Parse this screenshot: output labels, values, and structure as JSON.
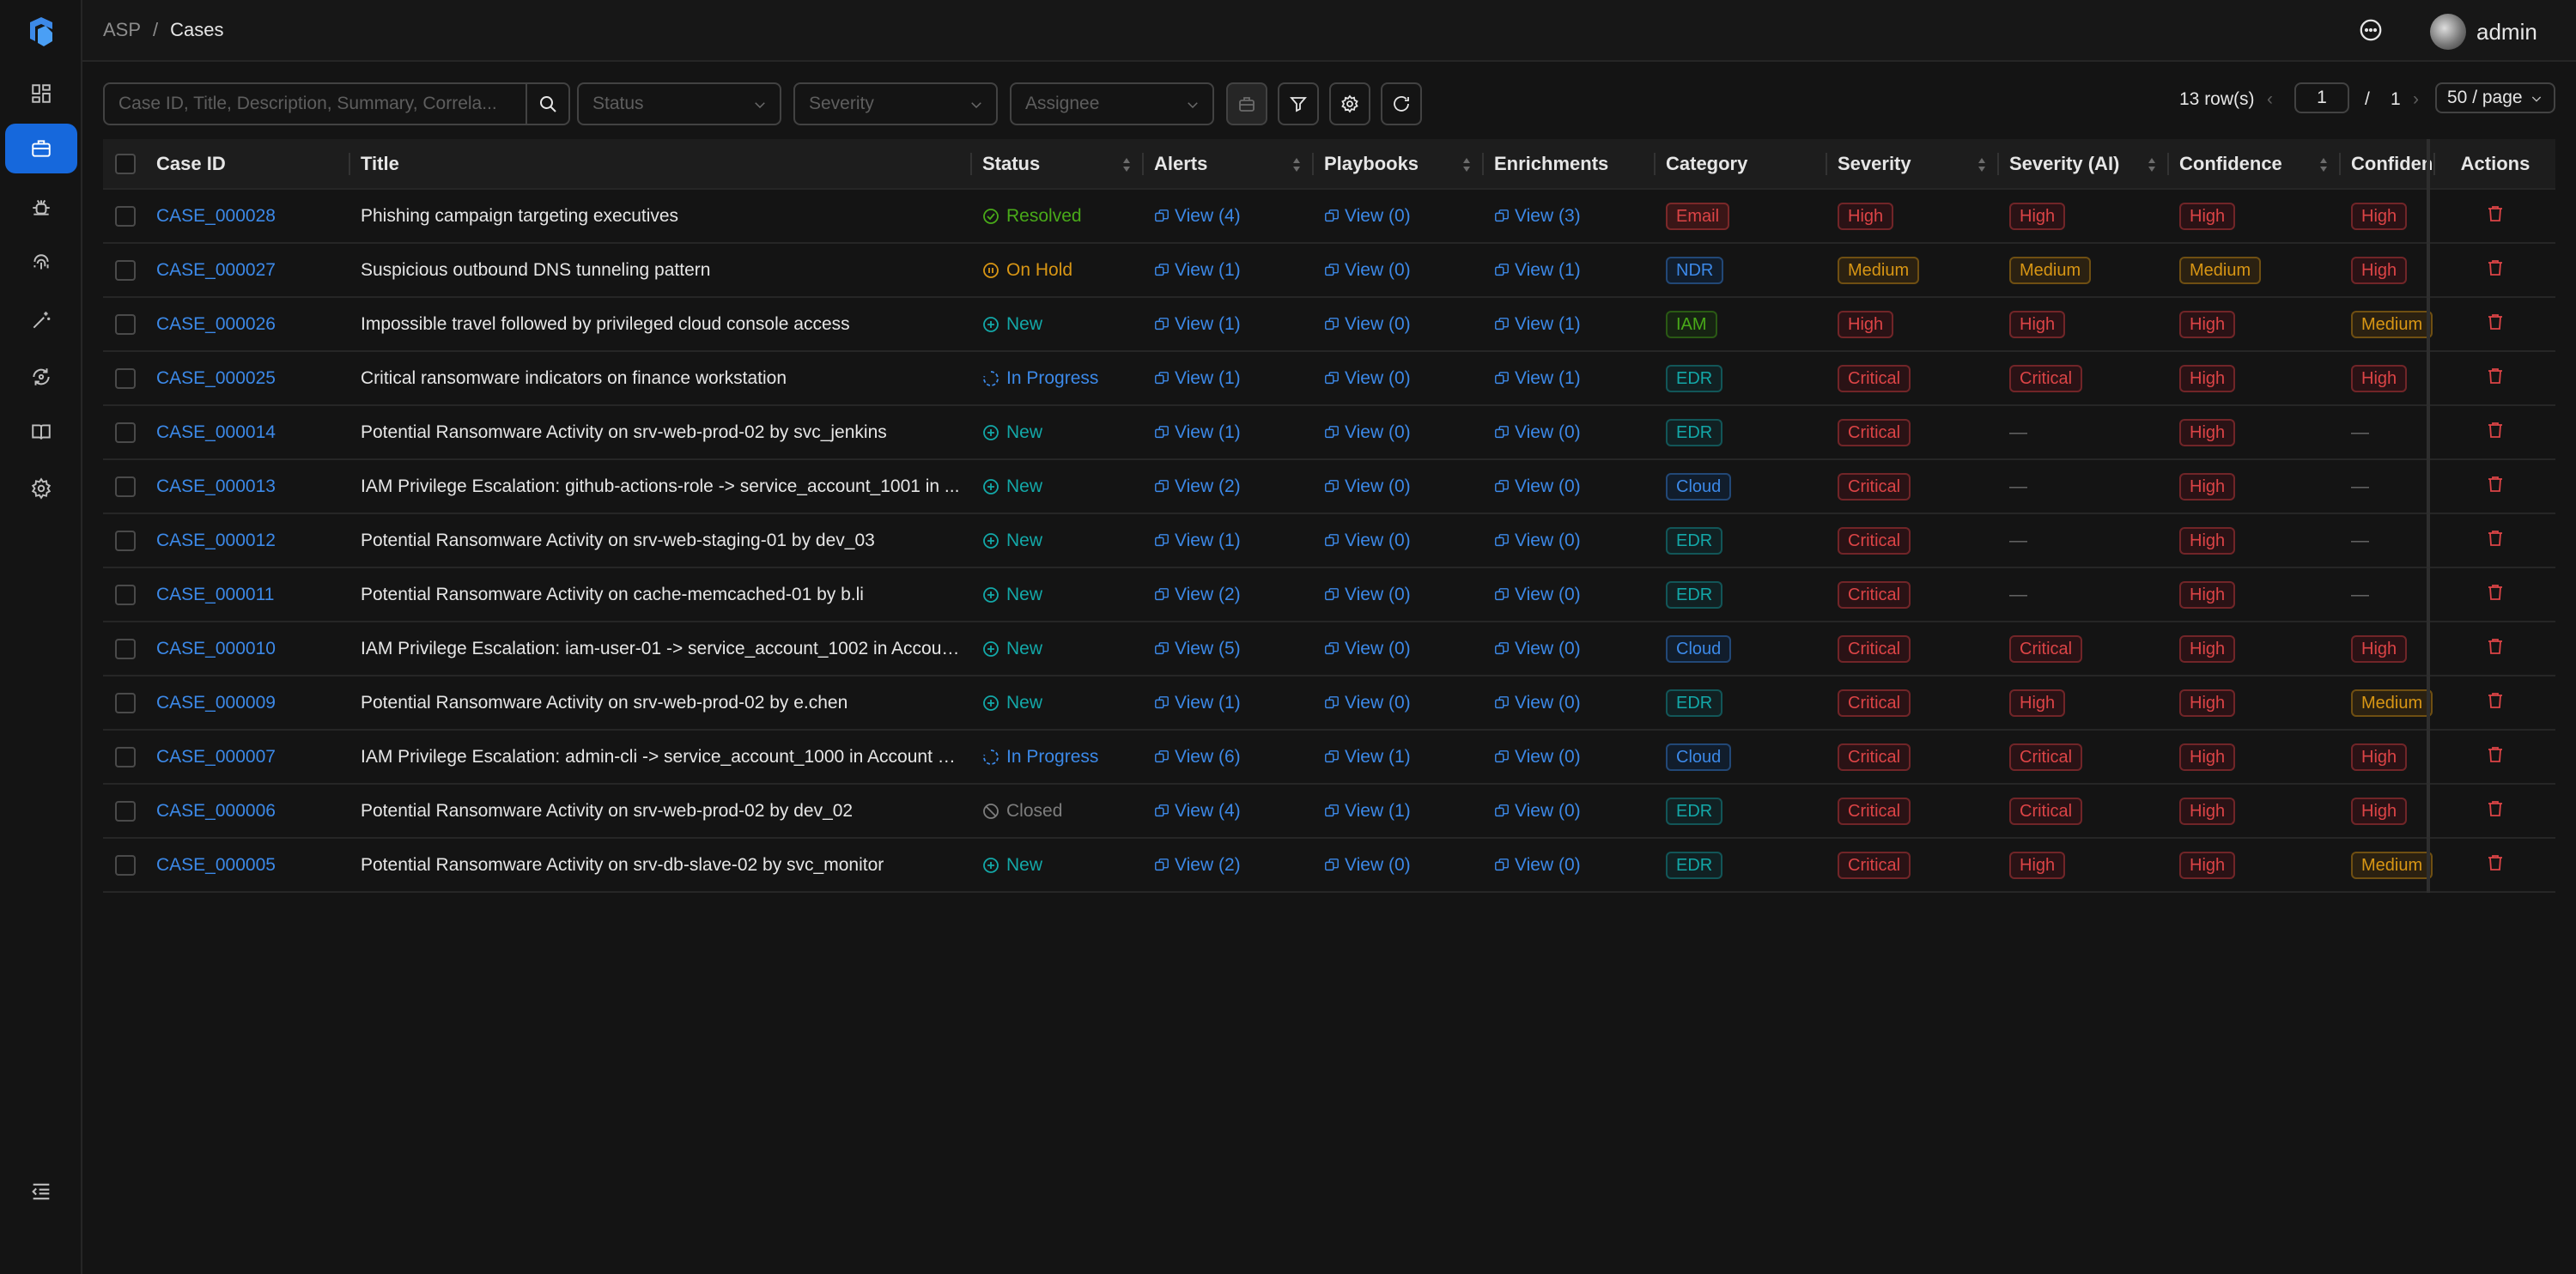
{
  "breadcrumb": {
    "root": "ASP",
    "sep": "/",
    "current": "Cases"
  },
  "user": {
    "name": "admin"
  },
  "nav": [
    "dashboard-icon",
    "cases-icon",
    "alert-bug-icon",
    "fingerprint-icon",
    "magic-wand-icon",
    "playbook-icon",
    "book-icon",
    "settings-icon"
  ],
  "toolbar": {
    "search_placeholder": "Case ID, Title, Description, Summary, Correla...",
    "status_placeholder": "Status",
    "severity_placeholder": "Severity",
    "assignee_placeholder": "Assignee"
  },
  "pagination": {
    "rows": "13 row(s)",
    "page": "1",
    "sep": "/",
    "total": "1",
    "page_size": "50 / page"
  },
  "columns": [
    "Case ID",
    "Title",
    "Status",
    "Alerts",
    "Playbooks",
    "Enrichments",
    "Category",
    "Severity",
    "Severity (AI)",
    "Confidence",
    "Confidence",
    "Actions"
  ],
  "colors": {
    "accent": "#1668dc",
    "link": "#3c89e8",
    "danger": "#dc4446"
  },
  "rows": [
    {
      "id": "CASE_000028",
      "title": "Phishing campaign targeting executives",
      "status": "Resolved",
      "alerts": "View (4)",
      "playbooks": "View (0)",
      "enrichments": "View (3)",
      "category": "Email",
      "severity": "High",
      "severity_ai": "High",
      "confidence": "High",
      "confidence2": "High"
    },
    {
      "id": "CASE_000027",
      "title": "Suspicious outbound DNS tunneling pattern",
      "status": "On Hold",
      "alerts": "View (1)",
      "playbooks": "View (0)",
      "enrichments": "View (1)",
      "category": "NDR",
      "severity": "Medium",
      "severity_ai": "Medium",
      "confidence": "Medium",
      "confidence2": "High"
    },
    {
      "id": "CASE_000026",
      "title": "Impossible travel followed by privileged cloud console access",
      "status": "New",
      "alerts": "View (1)",
      "playbooks": "View (0)",
      "enrichments": "View (1)",
      "category": "IAM",
      "severity": "High",
      "severity_ai": "High",
      "confidence": "High",
      "confidence2": "Medium"
    },
    {
      "id": "CASE_000025",
      "title": "Critical ransomware indicators on finance workstation",
      "status": "In Progress",
      "alerts": "View (1)",
      "playbooks": "View (0)",
      "enrichments": "View (1)",
      "category": "EDR",
      "severity": "Critical",
      "severity_ai": "Critical",
      "confidence": "High",
      "confidence2": "High"
    },
    {
      "id": "CASE_000014",
      "title": "Potential Ransomware Activity on srv-web-prod-02 by svc_jenkins",
      "status": "New",
      "alerts": "View (1)",
      "playbooks": "View (0)",
      "enrichments": "View (0)",
      "category": "EDR",
      "severity": "Critical",
      "severity_ai": "—",
      "confidence": "High",
      "confidence2": "—"
    },
    {
      "id": "CASE_000013",
      "title": "IAM Privilege Escalation: github-actions-role -> service_account_1001 in ...",
      "status": "New",
      "alerts": "View (2)",
      "playbooks": "View (0)",
      "enrichments": "View (0)",
      "category": "Cloud",
      "severity": "Critical",
      "severity_ai": "—",
      "confidence": "High",
      "confidence2": "—"
    },
    {
      "id": "CASE_000012",
      "title": "Potential Ransomware Activity on srv-web-staging-01 by dev_03",
      "status": "New",
      "alerts": "View (1)",
      "playbooks": "View (0)",
      "enrichments": "View (0)",
      "category": "EDR",
      "severity": "Critical",
      "severity_ai": "—",
      "confidence": "High",
      "confidence2": "—"
    },
    {
      "id": "CASE_000011",
      "title": "Potential Ransomware Activity on cache-memcached-01 by b.li",
      "status": "New",
      "alerts": "View (2)",
      "playbooks": "View (0)",
      "enrichments": "View (0)",
      "category": "EDR",
      "severity": "Critical",
      "severity_ai": "—",
      "confidence": "High",
      "confidence2": "—"
    },
    {
      "id": "CASE_000010",
      "title": "IAM Privilege Escalation: iam-user-01 -> service_account_1002 in Account...",
      "status": "New",
      "alerts": "View (5)",
      "playbooks": "View (0)",
      "enrichments": "View (0)",
      "category": "Cloud",
      "severity": "Critical",
      "severity_ai": "Critical",
      "confidence": "High",
      "confidence2": "High"
    },
    {
      "id": "CASE_000009",
      "title": "Potential Ransomware Activity on srv-web-prod-02 by e.chen",
      "status": "New",
      "alerts": "View (1)",
      "playbooks": "View (0)",
      "enrichments": "View (0)",
      "category": "EDR",
      "severity": "Critical",
      "severity_ai": "High",
      "confidence": "High",
      "confidence2": "Medium"
    },
    {
      "id": "CASE_000007",
      "title": "IAM Privilege Escalation: admin-cli -> service_account_1000 in Account 1...",
      "status": "In Progress",
      "alerts": "View (6)",
      "playbooks": "View (1)",
      "enrichments": "View (0)",
      "category": "Cloud",
      "severity": "Critical",
      "severity_ai": "Critical",
      "confidence": "High",
      "confidence2": "High"
    },
    {
      "id": "CASE_000006",
      "title": "Potential Ransomware Activity on srv-web-prod-02 by dev_02",
      "status": "Closed",
      "alerts": "View (4)",
      "playbooks": "View (1)",
      "enrichments": "View (0)",
      "category": "EDR",
      "severity": "Critical",
      "severity_ai": "Critical",
      "confidence": "High",
      "confidence2": "High"
    },
    {
      "id": "CASE_000005",
      "title": "Potential Ransomware Activity on srv-db-slave-02 by svc_monitor",
      "status": "New",
      "alerts": "View (2)",
      "playbooks": "View (0)",
      "enrichments": "View (0)",
      "category": "EDR",
      "severity": "Critical",
      "severity_ai": "High",
      "confidence": "High",
      "confidence2": "Medium"
    }
  ]
}
